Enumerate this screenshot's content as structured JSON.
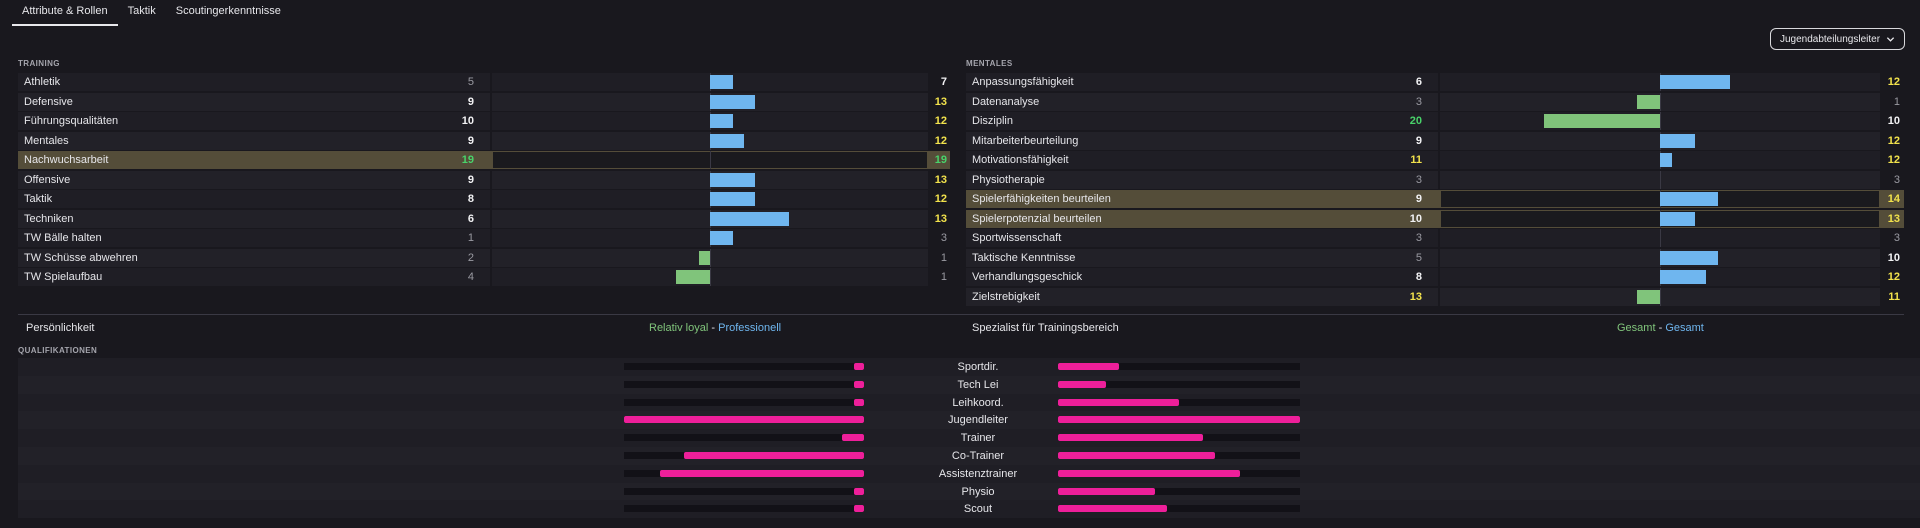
{
  "tabs": [
    {
      "label": "Attribute & Rollen",
      "active": true
    },
    {
      "label": "Taktik",
      "active": false
    },
    {
      "label": "Scoutingerkenntnisse",
      "active": false
    }
  ],
  "role_dropdown": {
    "selected": "Jugendabteilungsleiter"
  },
  "training": {
    "title": "TRAINING",
    "rows": [
      {
        "name": "Athletik",
        "current": 5,
        "potential": 7,
        "current_color": "grey",
        "potential_color": "white"
      },
      {
        "name": "Defensive",
        "current": 9,
        "potential": 13,
        "current_color": "white",
        "potential_color": "yellow"
      },
      {
        "name": "Führungsqualitäten",
        "current": 10,
        "potential": 12,
        "current_color": "white",
        "potential_color": "yellow"
      },
      {
        "name": "Mentales",
        "current": 9,
        "potential": 12,
        "current_color": "white",
        "potential_color": "yellow"
      },
      {
        "name": "Nachwuchsarbeit",
        "current": 19,
        "potential": 19,
        "current_color": "green",
        "potential_color": "green",
        "highlight": true
      },
      {
        "name": "Offensive",
        "current": 9,
        "potential": 13,
        "current_color": "white",
        "potential_color": "yellow"
      },
      {
        "name": "Taktik",
        "current": 8,
        "potential": 12,
        "current_color": "white",
        "potential_color": "yellow"
      },
      {
        "name": "Techniken",
        "current": 6,
        "potential": 13,
        "current_color": "white",
        "potential_color": "yellow"
      },
      {
        "name": "TW Bälle halten",
        "current": 1,
        "potential": 3,
        "current_color": "grey",
        "potential_color": "grey"
      },
      {
        "name": "TW Schüsse abwehren",
        "current": 2,
        "potential": 1,
        "current_color": "grey",
        "potential_color": "grey"
      },
      {
        "name": "TW Spielaufbau",
        "current": 4,
        "potential": 1,
        "current_color": "grey",
        "potential_color": "grey"
      }
    ]
  },
  "mental": {
    "title": "MENTALES",
    "rows": [
      {
        "name": "Anpassungsfähigkeit",
        "current": 6,
        "potential": 12,
        "current_color": "white",
        "potential_color": "yellow"
      },
      {
        "name": "Datenanalyse",
        "current": 3,
        "potential": 1,
        "current_color": "grey",
        "potential_color": "grey"
      },
      {
        "name": "Disziplin",
        "current": 20,
        "potential": 10,
        "current_color": "green",
        "potential_color": "white"
      },
      {
        "name": "Mitarbeiterbeurteilung",
        "current": 9,
        "potential": 12,
        "current_color": "white",
        "potential_color": "yellow"
      },
      {
        "name": "Motivationsfähigkeit",
        "current": 11,
        "potential": 12,
        "current_color": "yellow",
        "potential_color": "yellow"
      },
      {
        "name": "Physiotherapie",
        "current": 3,
        "potential": 3,
        "current_color": "grey",
        "potential_color": "grey"
      },
      {
        "name": "Spielerfähigkeiten beurteilen",
        "current": 9,
        "potential": 14,
        "current_color": "white",
        "potential_color": "yellow",
        "highlight": true
      },
      {
        "name": "Spielerpotenzial beurteilen",
        "current": 10,
        "potential": 13,
        "current_color": "white",
        "potential_color": "yellow",
        "highlight": true
      },
      {
        "name": "Sportwissenschaft",
        "current": 3,
        "potential": 3,
        "current_color": "grey",
        "potential_color": "grey"
      },
      {
        "name": "Taktische Kenntnisse",
        "current": 5,
        "potential": 10,
        "current_color": "grey",
        "potential_color": "white"
      },
      {
        "name": "Verhandlungsgeschick",
        "current": 8,
        "potential": 12,
        "current_color": "white",
        "potential_color": "yellow"
      },
      {
        "name": "Zielstrebigkeit",
        "current": 13,
        "potential": 11,
        "current_color": "yellow",
        "potential_color": "yellow"
      }
    ]
  },
  "personality": {
    "label": "Persönlichkeit",
    "value_a": "Relativ loyal",
    "separator": "-",
    "value_b": "Professionell"
  },
  "specialist": {
    "label": "Spezialist für Trainingsbereich",
    "value_a": "Gesamt",
    "separator": "-",
    "value_b": "Gesamt"
  },
  "qualifications": {
    "title": "QUALIFIKATIONEN",
    "rows": [
      {
        "role": "Sportdir.",
        "left_fraction": 0.04,
        "right_fraction": 0.25
      },
      {
        "role": "Tech Lei",
        "left_fraction": 0.04,
        "right_fraction": 0.2
      },
      {
        "role": "Leihkoord.",
        "left_fraction": 0.04,
        "right_fraction": 0.5
      },
      {
        "role": "Jugendleiter",
        "left_fraction": 1.0,
        "right_fraction": 1.0
      },
      {
        "role": "Trainer",
        "left_fraction": 0.09,
        "right_fraction": 0.6
      },
      {
        "role": "Co-Trainer",
        "left_fraction": 0.75,
        "right_fraction": 0.65
      },
      {
        "role": "Assistenztrainer",
        "left_fraction": 0.85,
        "right_fraction": 0.75
      },
      {
        "role": "Physio",
        "left_fraction": 0.04,
        "right_fraction": 0.4
      },
      {
        "role": "Scout",
        "left_fraction": 0.04,
        "right_fraction": 0.45
      }
    ]
  },
  "colors": {
    "bar_increase": "#6fb6ef",
    "bar_decrease": "#80c47b",
    "qualification_bar": "#ee1f9a",
    "highlight_row": "#544d39",
    "value_yellow": "#f2e24c",
    "value_green": "#49d26a"
  },
  "icons": {
    "dropdown": "chevron-down-icon"
  }
}
